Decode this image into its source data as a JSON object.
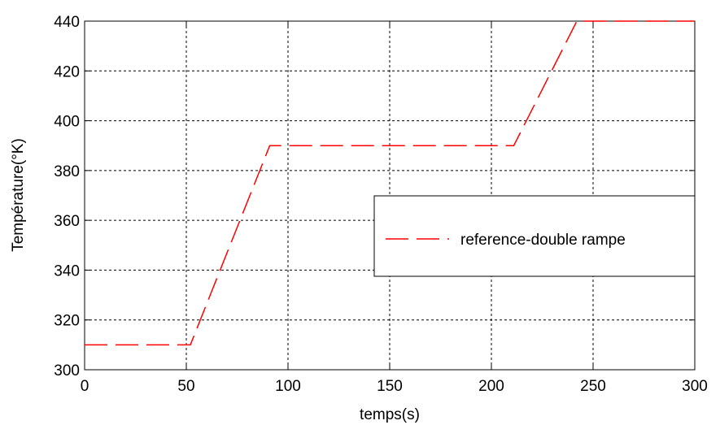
{
  "chart_data": {
    "type": "line",
    "title": "",
    "xlabel": "temps(s)",
    "ylabel": "Température(°K)",
    "xlim": [
      0,
      300
    ],
    "ylim": [
      300,
      440
    ],
    "xticks": [
      0,
      50,
      100,
      150,
      200,
      250,
      300
    ],
    "yticks": [
      300,
      320,
      340,
      360,
      380,
      400,
      420,
      440
    ],
    "grid": true,
    "legend_position": "right",
    "series": [
      {
        "name": "reference-double rampe",
        "color": "#ff0000",
        "line_style": "dashed",
        "x": [
          0,
          52,
          91,
          211,
          242,
          300
        ],
        "y": [
          310,
          310,
          390,
          390,
          440,
          440
        ]
      }
    ]
  }
}
